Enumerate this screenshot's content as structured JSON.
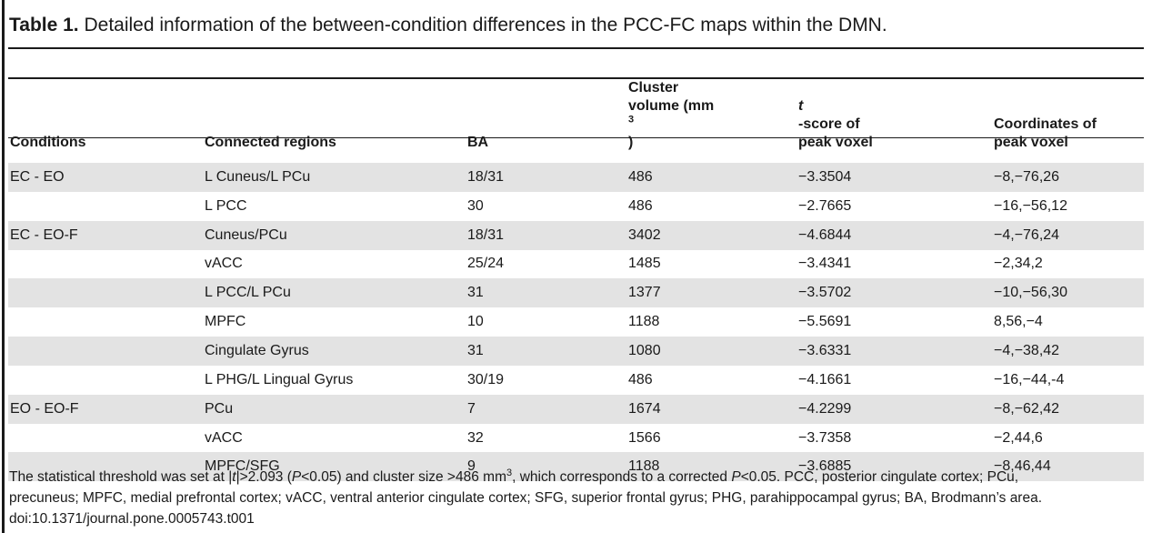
{
  "caption": {
    "label": "Table 1.",
    "text": "Detailed information of the between-condition differences in the PCC-FC maps within the DMN."
  },
  "headers": {
    "conditions": "Conditions",
    "regions": "Connected regions",
    "ba": "BA",
    "volume_line1": "Cluster",
    "volume_line2": "volume (mm",
    "volume_sup": "3",
    "volume_close": ")",
    "tscore_italic": "t",
    "tscore_line1": "-score of",
    "tscore_line2": "peak voxel",
    "coord_line1": "Coordinates of",
    "coord_line2": "peak voxel"
  },
  "rows": [
    {
      "condition": "EC - EO",
      "region": "L Cuneus/L PCu",
      "ba": "18/31",
      "volume": "486",
      "t": "−3.3504",
      "coord": "−8,−76,26",
      "shade": true
    },
    {
      "condition": "",
      "region": "L PCC",
      "ba": "30",
      "volume": "486",
      "t": "−2.7665",
      "coord": "−16,−56,12",
      "shade": false
    },
    {
      "condition": "EC - EO-F",
      "region": "Cuneus/PCu",
      "ba": "18/31",
      "volume": "3402",
      "t": "−4.6844",
      "coord": "−4,−76,24",
      "shade": true
    },
    {
      "condition": "",
      "region": "vACC",
      "ba": "25/24",
      "volume": "1485",
      "t": "−3.4341",
      "coord": "−2,34,2",
      "shade": false
    },
    {
      "condition": "",
      "region": "L PCC/L PCu",
      "ba": "31",
      "volume": "1377",
      "t": "−3.5702",
      "coord": "−10,−56,30",
      "shade": true
    },
    {
      "condition": "",
      "region": "MPFC",
      "ba": "10",
      "volume": "1188",
      "t": "−5.5691",
      "coord": "8,56,−4",
      "shade": false
    },
    {
      "condition": "",
      "region": "Cingulate Gyrus",
      "ba": "31",
      "volume": "1080",
      "t": "−3.6331",
      "coord": "−4,−38,42",
      "shade": true
    },
    {
      "condition": "",
      "region": "L PHG/L Lingual Gyrus",
      "ba": "30/19",
      "volume": "486",
      "t": "−4.1661",
      "coord": "−16,−44,-4",
      "shade": false
    },
    {
      "condition": "EO - EO-F",
      "region": "PCu",
      "ba": "7",
      "volume": "1674",
      "t": "−4.2299",
      "coord": "−8,−62,42",
      "shade": true
    },
    {
      "condition": "",
      "region": "vACC",
      "ba": "32",
      "volume": "1566",
      "t": "−3.7358",
      "coord": "−2,44,6",
      "shade": false
    },
    {
      "condition": "",
      "region": "MPFC/SFG",
      "ba": "9",
      "volume": "1188",
      "t": "−3.6885",
      "coord": "−8,46,44",
      "shade": true
    }
  ],
  "footnote": {
    "p1_a": "The statistical threshold was set at |",
    "p1_t": "t",
    "p1_b": "|>2.093 (",
    "p1_P1": "P",
    "p1_c": "<0.05) and cluster size >486 mm",
    "p1_sup": "3",
    "p1_d": ", which corresponds to a corrected ",
    "p1_P2": "P",
    "p1_e": "<0.05. PCC, posterior cingulate cortex; PCu,",
    "p2": "precuneus; MPFC, medial prefrontal cortex; vACC, ventral anterior cingulate cortex; SFG, superior frontal gyrus; PHG, parahippocampal gyrus; BA, Brodmann’s area.",
    "doi": "doi:10.1371/journal.pone.0005743.t001"
  }
}
